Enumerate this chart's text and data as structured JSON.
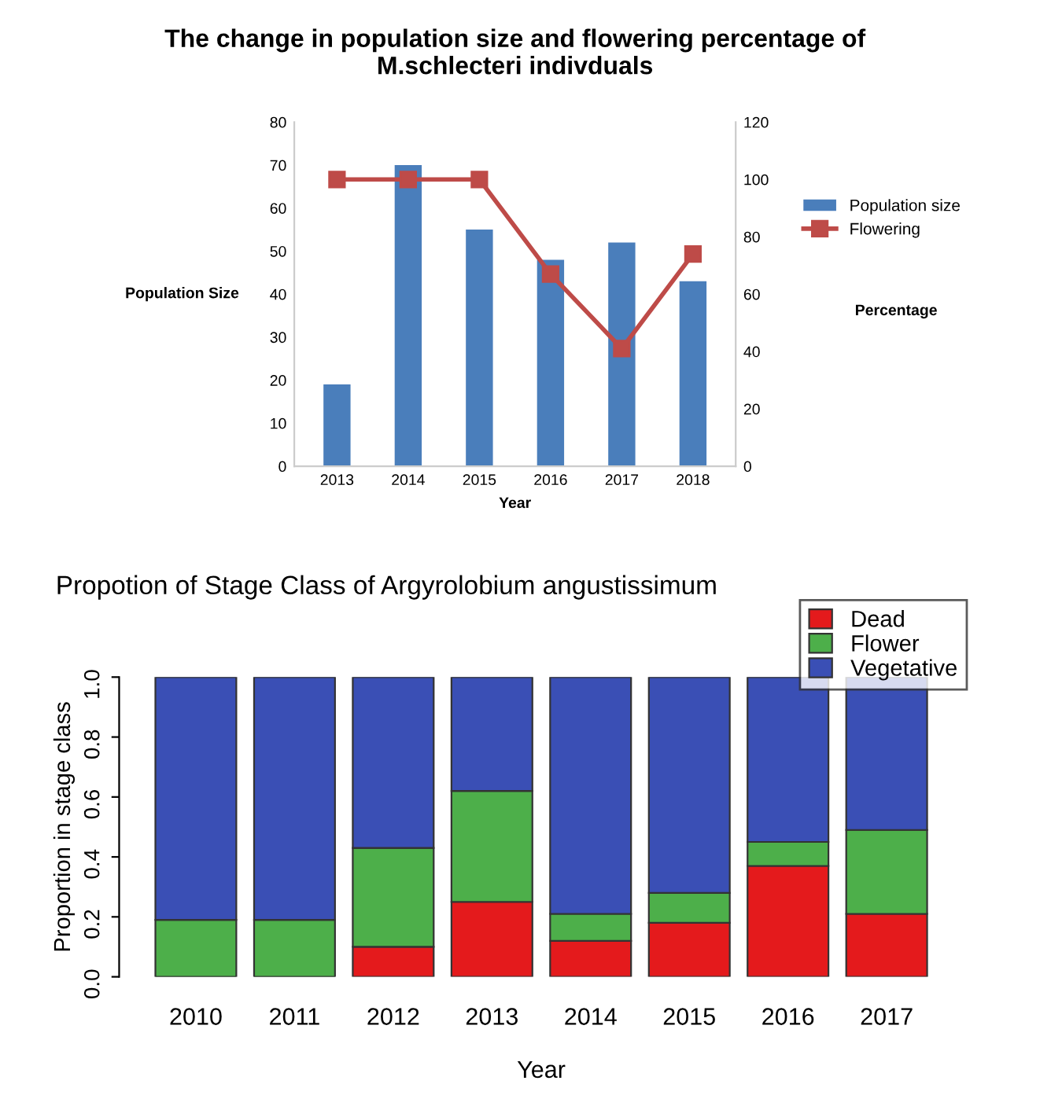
{
  "chart_data": [
    {
      "type": "bar",
      "title": "The change in population size and flowering percentage of\nM.schlecteri indivduals",
      "xlabel": "Year",
      "ylabel": "Population Size",
      "y2label": "Percentage",
      "categories": [
        "2013",
        "2014",
        "2015",
        "2016",
        "2017",
        "2018"
      ],
      "series": [
        {
          "name": "Population size",
          "type": "bar",
          "color": "#4a7ebb",
          "values": [
            19,
            70,
            55,
            48,
            52,
            43
          ]
        },
        {
          "name": "Flowering",
          "type": "line",
          "axis": "y2",
          "color": "#be4b48",
          "marker": "square",
          "line_style": "solid",
          "values": [
            100,
            100,
            100,
            67,
            41,
            74
          ]
        }
      ],
      "ylim": [
        0,
        80
      ],
      "yticks": [
        0,
        10,
        20,
        30,
        40,
        50,
        60,
        70,
        80
      ],
      "y2lim": [
        0,
        120
      ],
      "y2ticks": [
        0,
        20,
        40,
        60,
        80,
        100,
        120
      ],
      "legend": "right",
      "grid": false
    },
    {
      "type": "bar",
      "stacked": true,
      "title": "Propotion of Stage Class of Argyrolobium angustissimum",
      "xlabel": "Year",
      "ylabel": "Proportion in stage class",
      "categories": [
        "2010",
        "2011",
        "2012",
        "2013",
        "2014",
        "2015",
        "2016",
        "2017"
      ],
      "series": [
        {
          "name": "Dead",
          "color": "#e41a1c",
          "values": [
            0,
            0,
            0.1,
            0.25,
            0.12,
            0.18,
            0.37,
            0.21
          ]
        },
        {
          "name": "Flower",
          "color": "#4daf4a",
          "values": [
            0.19,
            0.19,
            0.33,
            0.37,
            0.09,
            0.1,
            0.08,
            0.28
          ]
        },
        {
          "name": "Vegetative",
          "color": "#3a4fb5",
          "values": [
            0.81,
            0.81,
            0.57,
            0.38,
            0.79,
            0.72,
            0.55,
            0.51
          ]
        }
      ],
      "ylim": [
        0,
        1.0
      ],
      "yticks": [
        {
          "value": 0,
          "label": "0.0"
        },
        {
          "value": 0.2,
          "label": "0.2"
        },
        {
          "value": 0.4,
          "label": "0.4"
        },
        {
          "value": 0.6,
          "label": "0.6"
        },
        {
          "value": 0.8,
          "label": "0.8"
        },
        {
          "value": 1.0,
          "label": "1.0"
        }
      ],
      "legend": "top right",
      "grid": false
    }
  ]
}
